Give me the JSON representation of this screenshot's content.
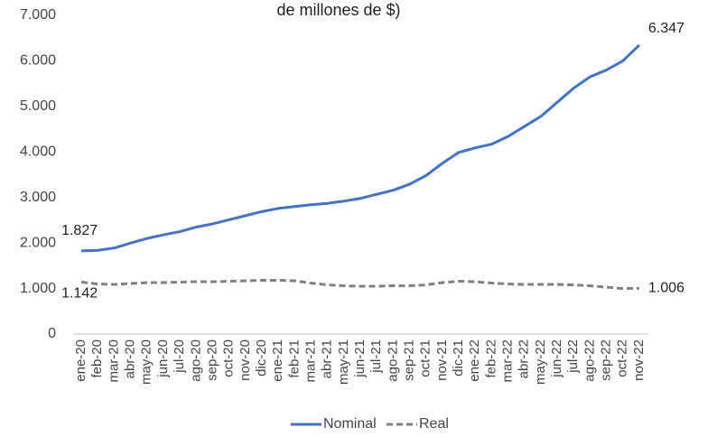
{
  "chart_data": {
    "type": "line",
    "title": "de millones de $)",
    "categories": [
      "ene-20",
      "feb-20",
      "mar-20",
      "abr-20",
      "may-20",
      "jun-20",
      "jul-20",
      "ago-20",
      "sep-20",
      "oct-20",
      "nov-20",
      "dic-20",
      "ene-21",
      "feb-21",
      "mar-21",
      "abr-21",
      "may-21",
      "jun-21",
      "jul-21",
      "ago-21",
      "sep-21",
      "oct-21",
      "nov-21",
      "dic-21",
      "ene-22",
      "feb-22",
      "mar-22",
      "abr-22",
      "may-22",
      "jun-22",
      "jul-22",
      "ago-22",
      "sep-22",
      "oct-22",
      "nov-22"
    ],
    "series": [
      {
        "name": "Nominal",
        "color": "#4472c4",
        "dashed": false,
        "values": [
          1827,
          1840,
          1890,
          2000,
          2100,
          2180,
          2250,
          2350,
          2420,
          2510,
          2600,
          2690,
          2760,
          2800,
          2840,
          2870,
          2920,
          2980,
          3070,
          3160,
          3290,
          3480,
          3750,
          3990,
          4090,
          4170,
          4340,
          4560,
          4780,
          5090,
          5400,
          5650,
          5800,
          6000,
          6347
        ],
        "value_labels": [
          "1.827",
          null,
          null,
          null,
          null,
          null,
          null,
          null,
          null,
          null,
          null,
          null,
          null,
          null,
          null,
          null,
          null,
          null,
          null,
          null,
          null,
          null,
          null,
          null,
          null,
          null,
          null,
          null,
          null,
          null,
          null,
          null,
          null,
          null,
          "6.347"
        ]
      },
      {
        "name": "Real",
        "color": "#808080",
        "dashed": true,
        "values": [
          1142,
          1100,
          1090,
          1110,
          1130,
          1130,
          1140,
          1150,
          1150,
          1160,
          1170,
          1180,
          1180,
          1170,
          1120,
          1080,
          1060,
          1050,
          1050,
          1060,
          1060,
          1080,
          1130,
          1160,
          1150,
          1120,
          1100,
          1090,
          1090,
          1090,
          1080,
          1060,
          1030,
          1000,
          1006
        ],
        "value_labels": [
          "1.142",
          null,
          null,
          null,
          null,
          null,
          null,
          null,
          null,
          null,
          null,
          null,
          null,
          null,
          null,
          null,
          null,
          null,
          null,
          null,
          null,
          null,
          null,
          null,
          null,
          null,
          null,
          null,
          null,
          null,
          null,
          null,
          null,
          null,
          "1.006"
        ]
      }
    ],
    "ylim": [
      0,
      7000
    ],
    "yticks": [
      0,
      {
        "value": 1000,
        "label": "1.000"
      },
      {
        "value": 2000,
        "label": "2.000"
      },
      {
        "value": 3000,
        "label": "3.000"
      },
      {
        "value": 4000,
        "label": "4.000"
      },
      {
        "value": 5000,
        "label": "5.000"
      },
      {
        "value": 6000,
        "label": "6.000"
      },
      {
        "value": 7000,
        "label": "7.000"
      }
    ],
    "grid": false,
    "legend": "bottom"
  }
}
